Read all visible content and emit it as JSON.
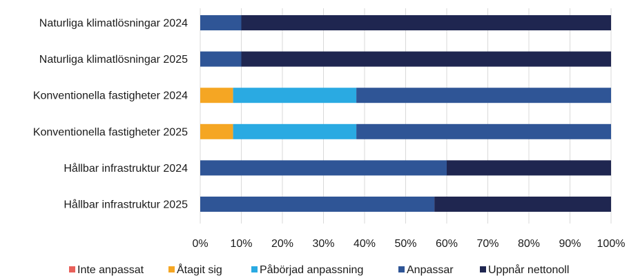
{
  "chart_data": {
    "type": "bar",
    "orientation": "horizontal",
    "stacked": true,
    "percent_stacked": true,
    "categories": [
      "Naturliga klimatlösningar 2024",
      "Naturliga klimatlösningar 2025",
      "Konventionella fastigheter 2024",
      "Konventionella fastigheter 2025",
      "Hållbar infrastruktur 2024",
      "Hållbar infrastruktur 2025"
    ],
    "series": [
      {
        "name": "Inte anpassat",
        "color": "#e8605a",
        "values": [
          0,
          0,
          0,
          0,
          0,
          0
        ]
      },
      {
        "name": "Åtagit sig",
        "color": "#f5a623",
        "values": [
          0,
          0,
          8,
          8,
          0,
          0
        ]
      },
      {
        "name": "Påbörjad anpassning",
        "color": "#2aaae2",
        "values": [
          0,
          0,
          30,
          30,
          0,
          0
        ]
      },
      {
        "name": "Anpassar",
        "color": "#2f5596",
        "values": [
          10,
          10,
          62,
          62,
          60,
          57
        ]
      },
      {
        "name": "Uppnår nettonoll",
        "color": "#1f2650",
        "values": [
          90,
          90,
          0,
          0,
          40,
          43
        ]
      }
    ],
    "xlim": [
      0,
      100
    ],
    "x_ticks": [
      "0%",
      "10%",
      "20%",
      "30%",
      "40%",
      "50%",
      "60%",
      "70%",
      "80%",
      "90%",
      "100%"
    ],
    "grid": true,
    "legend_position": "bottom"
  }
}
